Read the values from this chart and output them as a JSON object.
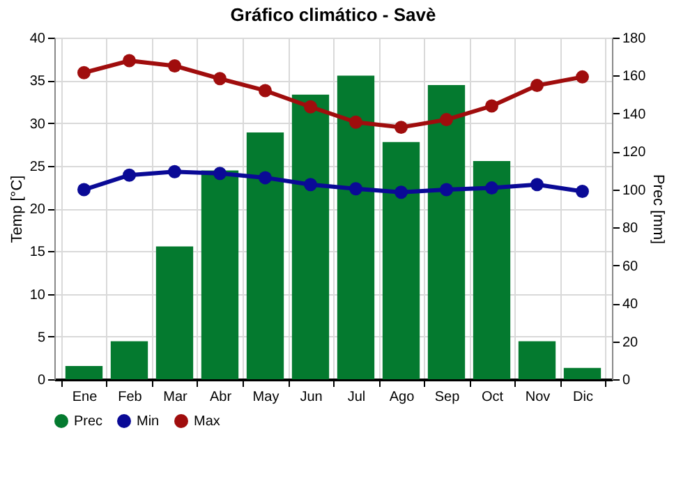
{
  "chart_data": {
    "type": "bar",
    "title": "Gráfico climático - Savè",
    "ylabel": "Temp [°C]",
    "y2label": "Prec [mm]",
    "categories": [
      "Ene",
      "Feb",
      "Mar",
      "Abr",
      "May",
      "Jun",
      "Jul",
      "Ago",
      "Sep",
      "Oct",
      "Nov",
      "Dic"
    ],
    "series": [
      {
        "name": "Prec",
        "axis": "y2",
        "color": "#047a2f",
        "values": [
          7,
          20,
          70,
          110,
          130,
          150,
          160,
          125,
          155,
          115,
          20,
          6
        ]
      },
      {
        "name": "Min",
        "type": "line",
        "color": "#0a0a96",
        "values": [
          22.2,
          23.9,
          24.3,
          24.1,
          23.6,
          22.8,
          22.3,
          21.9,
          22.2,
          22.4,
          22.8,
          22.0
        ]
      },
      {
        "name": "Max",
        "type": "line",
        "color": "#a00d0d",
        "values": [
          35.9,
          37.3,
          36.7,
          35.2,
          33.8,
          31.9,
          30.1,
          29.5,
          30.4,
          32.0,
          34.4,
          35.4
        ]
      }
    ],
    "ylim": [
      0,
      40
    ],
    "yticks": [
      0,
      5,
      10,
      15,
      20,
      25,
      30,
      35,
      40
    ],
    "y2lim": [
      0,
      180
    ],
    "y2ticks": [
      0,
      20,
      40,
      60,
      80,
      100,
      120,
      140,
      160,
      180
    ],
    "grid": true,
    "legend": "bottom left",
    "marker": "circle",
    "line_style": "solid"
  }
}
